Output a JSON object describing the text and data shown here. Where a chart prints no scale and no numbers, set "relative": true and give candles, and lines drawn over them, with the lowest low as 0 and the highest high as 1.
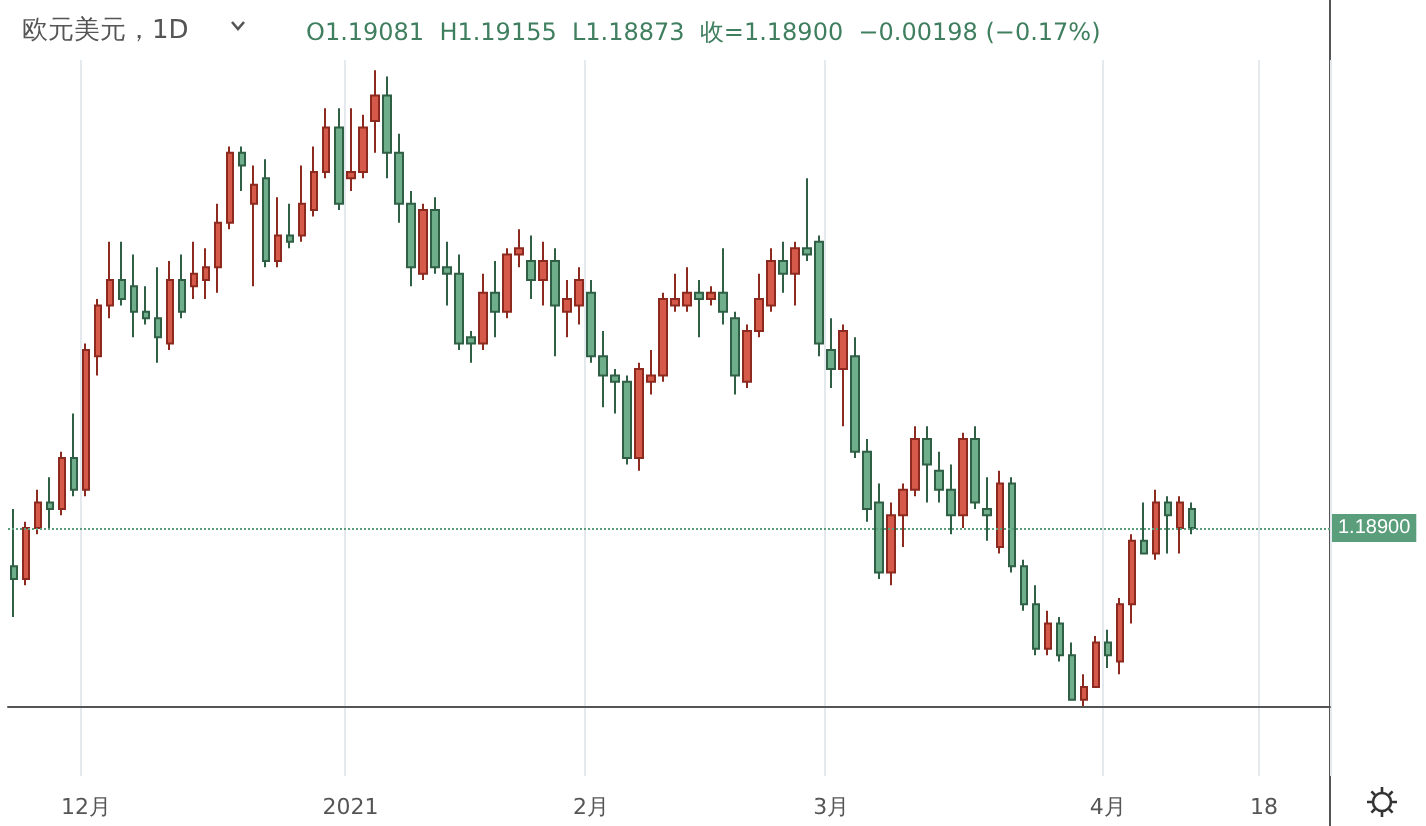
{
  "chart_data": {
    "type": "candlestick",
    "title": "欧元美元，1D",
    "subtitle": "O1.19081  H1.19155  L1.18873  收=1.18900  −0.00198 (−0.17%)",
    "relative": true,
    "grid": "x",
    "annotations": [
      "1.18900"
    ],
    "categories": [
      null,
      null,
      null,
      null,
      null,
      null,
      "12月",
      null,
      null,
      null,
      null,
      null,
      null,
      null,
      null,
      null,
      null,
      null,
      null,
      null,
      null,
      null,
      null,
      null,
      null,
      null,
      null,
      null,
      "2021",
      null,
      null,
      null,
      null,
      null,
      null,
      null,
      null,
      null,
      null,
      null,
      null,
      null,
      null,
      null,
      null,
      null,
      null,
      null,
      "2月",
      null,
      null,
      null,
      null,
      null,
      null,
      null,
      null,
      null,
      null,
      null,
      null,
      null,
      null,
      null,
      null,
      null,
      null,
      null,
      "3月",
      null,
      null,
      null,
      null,
      null,
      null,
      null,
      null,
      null,
      null,
      null,
      null,
      null,
      null,
      null,
      null,
      null,
      null,
      null,
      null,
      null,
      null,
      "4月",
      null,
      null,
      null,
      null,
      null,
      null,
      null,
      null,
      null,
      null,
      null,
      null,
      "18",
      null,
      null,
      null,
      null,
      null
    ],
    "ohlc": [
      [
        0.22,
        0.31,
        0.14,
        0.2
      ],
      [
        0.2,
        0.29,
        0.19,
        0.28
      ],
      [
        0.28,
        0.34,
        0.27,
        0.32
      ],
      [
        0.32,
        0.36,
        0.28,
        0.31
      ],
      [
        0.31,
        0.4,
        0.3,
        0.39
      ],
      [
        0.39,
        0.46,
        0.33,
        0.34
      ],
      [
        0.34,
        0.57,
        0.33,
        0.56
      ],
      [
        0.55,
        0.64,
        0.52,
        0.63
      ],
      [
        0.63,
        0.73,
        0.61,
        0.67
      ],
      [
        0.67,
        0.73,
        0.63,
        0.64
      ],
      [
        0.66,
        0.71,
        0.58,
        0.62
      ],
      [
        0.62,
        0.66,
        0.6,
        0.61
      ],
      [
        0.61,
        0.69,
        0.54,
        0.58
      ],
      [
        0.57,
        0.7,
        0.56,
        0.67
      ],
      [
        0.67,
        0.71,
        0.61,
        0.62
      ],
      [
        0.66,
        0.73,
        0.64,
        0.68
      ],
      [
        0.67,
        0.72,
        0.64,
        0.69
      ],
      [
        0.69,
        0.79,
        0.65,
        0.76
      ],
      [
        0.76,
        0.88,
        0.75,
        0.87
      ],
      [
        0.87,
        0.88,
        0.81,
        0.85
      ],
      [
        0.79,
        0.85,
        0.66,
        0.82
      ],
      [
        0.83,
        0.86,
        0.69,
        0.7
      ],
      [
        0.7,
        0.8,
        0.69,
        0.74
      ],
      [
        0.74,
        0.79,
        0.72,
        0.73
      ],
      [
        0.74,
        0.85,
        0.73,
        0.79
      ],
      [
        0.78,
        0.88,
        0.77,
        0.84
      ],
      [
        0.84,
        0.94,
        0.83,
        0.91
      ],
      [
        0.91,
        0.94,
        0.78,
        0.79
      ],
      [
        0.83,
        0.94,
        0.81,
        0.84
      ],
      [
        0.84,
        0.93,
        0.83,
        0.91
      ],
      [
        0.92,
        1,
        0.87,
        0.96
      ],
      [
        0.96,
        0.99,
        0.83,
        0.87
      ],
      [
        0.87,
        0.9,
        0.76,
        0.79
      ],
      [
        0.79,
        0.81,
        0.66,
        0.69
      ],
      [
        0.68,
        0.79,
        0.67,
        0.78
      ],
      [
        0.78,
        0.8,
        0.68,
        0.69
      ],
      [
        0.69,
        0.73,
        0.63,
        0.68
      ],
      [
        0.68,
        0.71,
        0.56,
        0.57
      ],
      [
        0.58,
        0.59,
        0.54,
        0.57
      ],
      [
        0.57,
        0.68,
        0.56,
        0.65
      ],
      [
        0.65,
        0.7,
        0.58,
        0.62
      ],
      [
        0.62,
        0.72,
        0.61,
        0.71
      ],
      [
        0.71,
        0.75,
        0.69,
        0.72
      ],
      [
        0.7,
        0.74,
        0.64,
        0.67
      ],
      [
        0.67,
        0.73,
        0.63,
        0.7
      ],
      [
        0.7,
        0.72,
        0.55,
        0.63
      ],
      [
        0.62,
        0.67,
        0.58,
        0.64
      ],
      [
        0.63,
        0.69,
        0.6,
        0.67
      ],
      [
        0.65,
        0.67,
        0.54,
        0.55
      ],
      [
        0.55,
        0.59,
        0.47,
        0.52
      ],
      [
        0.52,
        0.53,
        0.46,
        0.51
      ],
      [
        0.51,
        0.52,
        0.38,
        0.39
      ],
      [
        0.39,
        0.54,
        0.37,
        0.53
      ],
      [
        0.51,
        0.56,
        0.49,
        0.52
      ],
      [
        0.52,
        0.65,
        0.51,
        0.64
      ],
      [
        0.63,
        0.68,
        0.62,
        0.64
      ],
      [
        0.63,
        0.69,
        0.62,
        0.65
      ],
      [
        0.65,
        0.67,
        0.58,
        0.64
      ],
      [
        0.64,
        0.66,
        0.63,
        0.65
      ],
      [
        0.65,
        0.72,
        0.6,
        0.62
      ],
      [
        0.61,
        0.62,
        0.49,
        0.52
      ],
      [
        0.51,
        0.6,
        0.5,
        0.59
      ],
      [
        0.59,
        0.68,
        0.58,
        0.64
      ],
      [
        0.63,
        0.72,
        0.62,
        0.7
      ],
      [
        0.7,
        0.73,
        0.65,
        0.68
      ],
      [
        0.68,
        0.73,
        0.63,
        0.72
      ],
      [
        0.72,
        0.83,
        0.7,
        0.71
      ],
      [
        0.73,
        0.74,
        0.55,
        0.57
      ],
      [
        0.56,
        0.61,
        0.5,
        0.53
      ],
      [
        0.53,
        0.6,
        0.44,
        0.59
      ],
      [
        0.55,
        0.58,
        0.39,
        0.4
      ],
      [
        0.4,
        0.42,
        0.29,
        0.31
      ],
      [
        0.32,
        0.35,
        0.2,
        0.21
      ],
      [
        0.21,
        0.32,
        0.19,
        0.3
      ],
      [
        0.3,
        0.35,
        0.25,
        0.34
      ],
      [
        0.34,
        0.44,
        0.33,
        0.42
      ],
      [
        0.42,
        0.44,
        0.32,
        0.38
      ],
      [
        0.37,
        0.4,
        0.32,
        0.34
      ],
      [
        0.34,
        0.38,
        0.27,
        0.3
      ],
      [
        0.3,
        0.43,
        0.28,
        0.42
      ],
      [
        0.42,
        0.44,
        0.31,
        0.32
      ],
      [
        0.31,
        0.36,
        0.26,
        0.3
      ],
      [
        0.25,
        0.37,
        0.24,
        0.35
      ],
      [
        0.35,
        0.36,
        0.21,
        0.22
      ],
      [
        0.22,
        0.23,
        0.15,
        0.16
      ],
      [
        0.16,
        0.19,
        0.08,
        0.09
      ],
      [
        0.09,
        0.15,
        0.08,
        0.13
      ],
      [
        0.13,
        0.14,
        0.07,
        0.08
      ],
      [
        0.08,
        0.1,
        0.01,
        0.01
      ],
      [
        0.01,
        0.05,
        0,
        0.03
      ],
      [
        0.03,
        0.11,
        0.03,
        0.1
      ],
      [
        0.1,
        0.12,
        0.06,
        0.08
      ],
      [
        0.07,
        0.17,
        0.05,
        0.16
      ],
      [
        0.16,
        0.27,
        0.13,
        0.26
      ],
      [
        0.26,
        0.32,
        0.24,
        0.24
      ],
      [
        0.24,
        0.34,
        0.23,
        0.32
      ],
      [
        0.32,
        0.33,
        0.24,
        0.3
      ],
      [
        0.28,
        0.33,
        0.24,
        0.32
      ],
      [
        0.31,
        0.32,
        0.27,
        0.28
      ],
      null,
      null,
      null,
      null,
      null,
      null,
      null,
      null,
      null,
      null,
      null
    ],
    "ref_lines": [
      {
        "axis": "y",
        "value": 0.28,
        "color": "#5b9e7c",
        "line_style": "dotted"
      }
    ]
  }
}
